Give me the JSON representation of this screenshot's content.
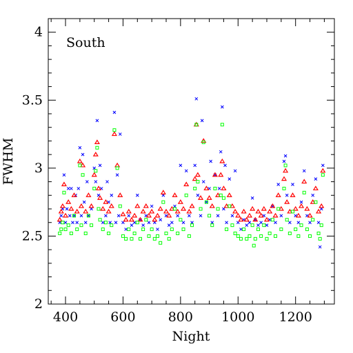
{
  "chart_data": {
    "type": "scatter",
    "panel_label": "South",
    "xlabel": "Night",
    "ylabel": "FWHM",
    "xlim": [
      340,
      1335
    ],
    "ylim": [
      2,
      4.1
    ],
    "x_ticks": [
      400,
      600,
      800,
      1000,
      1200
    ],
    "y_ticks": [
      2,
      2.5,
      3,
      3.5,
      4
    ],
    "x_tick_labels": [
      "400",
      "600",
      "800",
      "1000",
      "1200"
    ],
    "y_tick_labels": [
      "2",
      "2.5",
      "3",
      "3.5",
      "4"
    ],
    "grid": false,
    "legend": "none",
    "series": [
      {
        "marker": "x",
        "color": "#0000ff",
        "points": [
          [
            380,
            2.6
          ],
          [
            385,
            2.65
          ],
          [
            390,
            2.7
          ],
          [
            395,
            2.95
          ],
          [
            400,
            2.6
          ],
          [
            405,
            2.7
          ],
          [
            410,
            2.85
          ],
          [
            415,
            2.65
          ],
          [
            420,
            2.85
          ],
          [
            425,
            2.6
          ],
          [
            430,
            2.65
          ],
          [
            435,
            2.8
          ],
          [
            440,
            2.6
          ],
          [
            445,
            2.85
          ],
          [
            450,
            3.15
          ],
          [
            455,
            2.65
          ],
          [
            460,
            3.1
          ],
          [
            465,
            2.75
          ],
          [
            470,
            2.6
          ],
          [
            475,
            2.9
          ],
          [
            480,
            2.65
          ],
          [
            490,
            2.7
          ],
          [
            500,
            3.0
          ],
          [
            505,
            2.9
          ],
          [
            510,
            3.35
          ],
          [
            515,
            2.8
          ],
          [
            520,
            3.02
          ],
          [
            525,
            2.85
          ],
          [
            530,
            2.6
          ],
          [
            540,
            2.65
          ],
          [
            545,
            2.9
          ],
          [
            550,
            2.75
          ],
          [
            555,
            2.6
          ],
          [
            560,
            2.8
          ],
          [
            570,
            3.41
          ],
          [
            575,
            2.6
          ],
          [
            580,
            2.95
          ],
          [
            585,
            2.65
          ],
          [
            590,
            3.25
          ],
          [
            600,
            2.6
          ],
          [
            610,
            2.55
          ],
          [
            620,
            2.65
          ],
          [
            630,
            2.58
          ],
          [
            640,
            2.6
          ],
          [
            650,
            2.8
          ],
          [
            660,
            2.62
          ],
          [
            670,
            2.58
          ],
          [
            680,
            2.65
          ],
          [
            690,
            2.6
          ],
          [
            700,
            2.72
          ],
          [
            710,
            2.6
          ],
          [
            720,
            2.55
          ],
          [
            730,
            2.62
          ],
          [
            740,
            2.8
          ],
          [
            750,
            2.65
          ],
          [
            760,
            2.58
          ],
          [
            770,
            2.6
          ],
          [
            780,
            2.72
          ],
          [
            790,
            2.65
          ],
          [
            800,
            3.02
          ],
          [
            810,
            2.6
          ],
          [
            820,
            2.98
          ],
          [
            830,
            2.65
          ],
          [
            840,
            2.6
          ],
          [
            850,
            3.02
          ],
          [
            855,
            3.51
          ],
          [
            860,
            2.8
          ],
          [
            870,
            2.65
          ],
          [
            875,
            3.35
          ],
          [
            880,
            2.9
          ],
          [
            890,
            2.75
          ],
          [
            900,
            2.85
          ],
          [
            905,
            3.05
          ],
          [
            910,
            2.6
          ],
          [
            920,
            2.95
          ],
          [
            930,
            2.65
          ],
          [
            935,
            2.85
          ],
          [
            940,
            3.12
          ],
          [
            945,
            3.45
          ],
          [
            950,
            2.7
          ],
          [
            955,
            3.02
          ],
          [
            960,
            2.6
          ],
          [
            970,
            2.92
          ],
          [
            980,
            2.65
          ],
          [
            990,
            2.98
          ],
          [
            1000,
            2.6
          ],
          [
            1010,
            2.55
          ],
          [
            1020,
            2.62
          ],
          [
            1030,
            2.58
          ],
          [
            1040,
            2.6
          ],
          [
            1050,
            2.78
          ],
          [
            1060,
            2.62
          ],
          [
            1070,
            2.58
          ],
          [
            1080,
            2.6
          ],
          [
            1090,
            2.65
          ],
          [
            1100,
            2.58
          ],
          [
            1110,
            2.62
          ],
          [
            1120,
            2.72
          ],
          [
            1130,
            2.6
          ],
          [
            1140,
            2.88
          ],
          [
            1150,
            2.65
          ],
          [
            1160,
            3.05
          ],
          [
            1165,
            3.09
          ],
          [
            1170,
            2.8
          ],
          [
            1180,
            2.6
          ],
          [
            1190,
            2.88
          ],
          [
            1200,
            2.65
          ],
          [
            1210,
            2.6
          ],
          [
            1220,
            2.75
          ],
          [
            1230,
            2.98
          ],
          [
            1240,
            2.65
          ],
          [
            1250,
            2.6
          ],
          [
            1260,
            2.8
          ],
          [
            1270,
            2.92
          ],
          [
            1280,
            2.6
          ],
          [
            1285,
            2.42
          ],
          [
            1290,
            2.7
          ],
          [
            1295,
            3.02
          ]
        ]
      },
      {
        "marker": "triangle",
        "color": "#ff0000",
        "points": [
          [
            380,
            2.62
          ],
          [
            385,
            2.68
          ],
          [
            390,
            2.72
          ],
          [
            395,
            2.88
          ],
          [
            400,
            2.65
          ],
          [
            410,
            2.75
          ],
          [
            420,
            2.7
          ],
          [
            430,
            2.8
          ],
          [
            440,
            2.68
          ],
          [
            450,
            3.05
          ],
          [
            455,
            2.72
          ],
          [
            460,
            3.02
          ],
          [
            470,
            2.68
          ],
          [
            480,
            2.8
          ],
          [
            490,
            2.72
          ],
          [
            500,
            2.95
          ],
          [
            505,
            3.1
          ],
          [
            510,
            3.19
          ],
          [
            515,
            2.85
          ],
          [
            520,
            2.78
          ],
          [
            530,
            2.7
          ],
          [
            540,
            2.75
          ],
          [
            550,
            2.68
          ],
          [
            560,
            2.72
          ],
          [
            570,
            3.25
          ],
          [
            580,
            3.02
          ],
          [
            590,
            2.8
          ],
          [
            600,
            2.66
          ],
          [
            610,
            2.62
          ],
          [
            620,
            2.68
          ],
          [
            630,
            2.62
          ],
          [
            640,
            2.65
          ],
          [
            650,
            2.72
          ],
          [
            660,
            2.62
          ],
          [
            670,
            2.68
          ],
          [
            680,
            2.72
          ],
          [
            690,
            2.65
          ],
          [
            700,
            2.68
          ],
          [
            710,
            2.62
          ],
          [
            720,
            2.65
          ],
          [
            730,
            2.7
          ],
          [
            740,
            2.82
          ],
          [
            750,
            2.68
          ],
          [
            760,
            2.65
          ],
          [
            770,
            2.7
          ],
          [
            780,
            2.8
          ],
          [
            790,
            2.68
          ],
          [
            800,
            2.75
          ],
          [
            810,
            2.7
          ],
          [
            820,
            2.88
          ],
          [
            830,
            2.68
          ],
          [
            840,
            2.72
          ],
          [
            850,
            2.92
          ],
          [
            855,
            3.32
          ],
          [
            860,
            2.95
          ],
          [
            870,
            2.78
          ],
          [
            880,
            3.2
          ],
          [
            890,
            2.85
          ],
          [
            900,
            2.78
          ],
          [
            910,
            2.72
          ],
          [
            920,
            2.95
          ],
          [
            930,
            2.8
          ],
          [
            940,
            2.95
          ],
          [
            945,
            3.05
          ],
          [
            950,
            2.85
          ],
          [
            960,
            2.72
          ],
          [
            970,
            2.8
          ],
          [
            980,
            2.72
          ],
          [
            990,
            2.68
          ],
          [
            1000,
            2.65
          ],
          [
            1010,
            2.62
          ],
          [
            1020,
            2.68
          ],
          [
            1030,
            2.62
          ],
          [
            1040,
            2.65
          ],
          [
            1050,
            2.7
          ],
          [
            1060,
            2.62
          ],
          [
            1070,
            2.68
          ],
          [
            1080,
            2.65
          ],
          [
            1090,
            2.7
          ],
          [
            1100,
            2.62
          ],
          [
            1110,
            2.68
          ],
          [
            1120,
            2.72
          ],
          [
            1130,
            2.65
          ],
          [
            1140,
            2.8
          ],
          [
            1150,
            2.7
          ],
          [
            1160,
            2.92
          ],
          [
            1165,
            2.98
          ],
          [
            1170,
            2.75
          ],
          [
            1180,
            2.68
          ],
          [
            1190,
            2.8
          ],
          [
            1200,
            2.7
          ],
          [
            1210,
            2.65
          ],
          [
            1220,
            2.72
          ],
          [
            1230,
            2.9
          ],
          [
            1240,
            2.7
          ],
          [
            1250,
            2.65
          ],
          [
            1260,
            2.75
          ],
          [
            1270,
            2.85
          ],
          [
            1280,
            2.68
          ],
          [
            1290,
            2.72
          ],
          [
            1295,
            2.98
          ]
        ]
      },
      {
        "marker": "square",
        "color": "#00ff00",
        "points": [
          [
            380,
            2.52
          ],
          [
            385,
            2.55
          ],
          [
            390,
            2.6
          ],
          [
            395,
            2.82
          ],
          [
            400,
            2.55
          ],
          [
            410,
            2.58
          ],
          [
            420,
            2.52
          ],
          [
            430,
            2.65
          ],
          [
            440,
            2.55
          ],
          [
            450,
            3.02
          ],
          [
            455,
            2.58
          ],
          [
            460,
            2.95
          ],
          [
            470,
            2.52
          ],
          [
            480,
            2.65
          ],
          [
            490,
            2.58
          ],
          [
            500,
            2.85
          ],
          [
            505,
            2.98
          ],
          [
            510,
            3.15
          ],
          [
            515,
            2.7
          ],
          [
            520,
            2.62
          ],
          [
            530,
            2.55
          ],
          [
            540,
            2.6
          ],
          [
            550,
            2.52
          ],
          [
            560,
            2.58
          ],
          [
            570,
            3.28
          ],
          [
            580,
            3.0
          ],
          [
            590,
            2.72
          ],
          [
            600,
            2.5
          ],
          [
            610,
            2.48
          ],
          [
            620,
            2.55
          ],
          [
            630,
            2.48
          ],
          [
            640,
            2.52
          ],
          [
            650,
            2.6
          ],
          [
            660,
            2.48
          ],
          [
            670,
            2.55
          ],
          [
            680,
            2.62
          ],
          [
            690,
            2.5
          ],
          [
            700,
            2.55
          ],
          [
            710,
            2.48
          ],
          [
            720,
            2.5
          ],
          [
            730,
            2.45
          ],
          [
            740,
            2.75
          ],
          [
            750,
            2.52
          ],
          [
            760,
            2.48
          ],
          [
            770,
            2.55
          ],
          [
            780,
            2.7
          ],
          [
            790,
            2.52
          ],
          [
            800,
            2.62
          ],
          [
            810,
            2.55
          ],
          [
            820,
            2.8
          ],
          [
            830,
            2.5
          ],
          [
            840,
            2.58
          ],
          [
            850,
            2.85
          ],
          [
            855,
            3.32
          ],
          [
            860,
            2.9
          ],
          [
            870,
            2.7
          ],
          [
            880,
            3.19
          ],
          [
            890,
            2.75
          ],
          [
            900,
            2.65
          ],
          [
            910,
            2.58
          ],
          [
            920,
            2.85
          ],
          [
            930,
            2.7
          ],
          [
            940,
            2.8
          ],
          [
            945,
            3.32
          ],
          [
            950,
            2.78
          ],
          [
            960,
            2.55
          ],
          [
            970,
            2.72
          ],
          [
            980,
            2.58
          ],
          [
            990,
            2.52
          ],
          [
            1000,
            2.5
          ],
          [
            1010,
            2.48
          ],
          [
            1020,
            2.55
          ],
          [
            1030,
            2.48
          ],
          [
            1040,
            2.5
          ],
          [
            1050,
            2.58
          ],
          [
            1055,
            2.43
          ],
          [
            1060,
            2.48
          ],
          [
            1070,
            2.55
          ],
          [
            1080,
            2.5
          ],
          [
            1090,
            2.58
          ],
          [
            1100,
            2.48
          ],
          [
            1110,
            2.52
          ],
          [
            1120,
            2.62
          ],
          [
            1130,
            2.5
          ],
          [
            1140,
            2.7
          ],
          [
            1150,
            2.55
          ],
          [
            1160,
            2.85
          ],
          [
            1165,
            3.02
          ],
          [
            1170,
            2.62
          ],
          [
            1180,
            2.52
          ],
          [
            1190,
            2.68
          ],
          [
            1200,
            2.55
          ],
          [
            1210,
            2.5
          ],
          [
            1220,
            2.58
          ],
          [
            1230,
            2.82
          ],
          [
            1240,
            2.55
          ],
          [
            1250,
            2.5
          ],
          [
            1260,
            2.62
          ],
          [
            1270,
            2.75
          ],
          [
            1280,
            2.52
          ],
          [
            1285,
            2.48
          ],
          [
            1290,
            2.58
          ],
          [
            1295,
            2.95
          ]
        ]
      }
    ]
  }
}
